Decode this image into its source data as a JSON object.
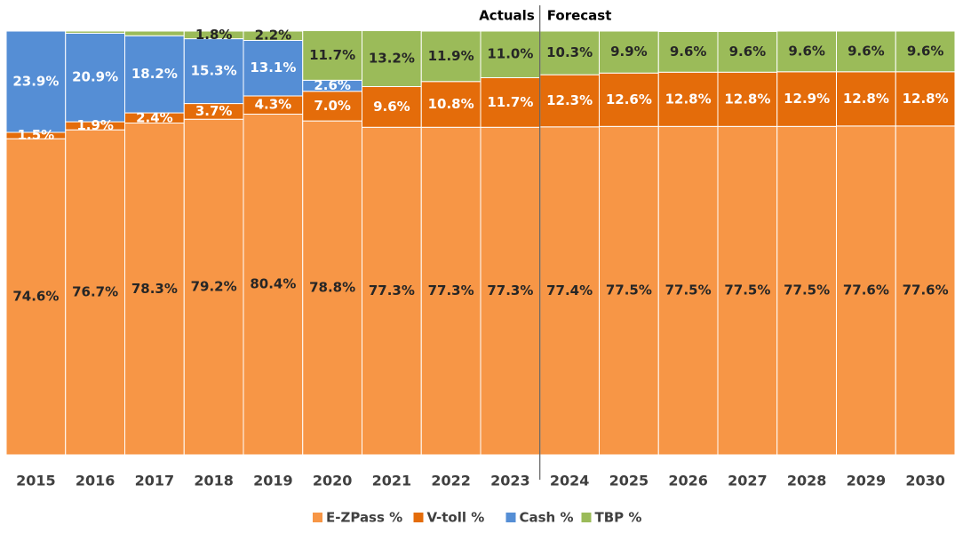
{
  "chart_data": {
    "type": "stacked_bar",
    "categories": [
      "2015",
      "2016",
      "2017",
      "2018",
      "2019",
      "2020",
      "2021",
      "2022",
      "2023",
      "2024",
      "2025",
      "2026",
      "2027",
      "2028",
      "2029",
      "2030"
    ],
    "ylim": [
      0,
      100
    ],
    "annotations": [
      "Actuals",
      "Forecast"
    ],
    "legend": "bottom",
    "series": [
      {
        "name": "E-ZPass %",
        "color": "#f79646",
        "label_color": "#262626",
        "values": [
          74.6,
          76.7,
          78.3,
          79.2,
          80.4,
          78.8,
          77.3,
          77.3,
          77.3,
          77.4,
          77.5,
          77.5,
          77.5,
          77.5,
          77.6,
          77.6
        ],
        "value_labels": [
          "74.6%",
          "76.7%",
          "78.3%",
          "79.2%",
          "80.4%",
          "78.8%",
          "77.3%",
          "77.3%",
          "77.3%",
          "77.4%",
          "77.5%",
          "77.5%",
          "77.5%",
          "77.5%",
          "77.6%",
          "77.6%"
        ]
      },
      {
        "name": "V-toll %",
        "color": "#e46c0a",
        "label_color": "#ffffff",
        "values": [
          1.5,
          1.9,
          2.4,
          3.7,
          4.3,
          7.0,
          9.6,
          10.8,
          11.7,
          12.3,
          12.6,
          12.8,
          12.8,
          12.9,
          12.8,
          12.8
        ],
        "value_labels": [
          "1.5%",
          "1.9%",
          "2.4%",
          "3.7%",
          "4.3%",
          "7.0%",
          "9.6%",
          "10.8%",
          "11.7%",
          "12.3%",
          "12.6%",
          "12.8%",
          "12.8%",
          "12.9%",
          "12.8%",
          "12.8%"
        ]
      },
      {
        "name": "Cash %",
        "color": "#558ed5",
        "label_color": "#ffffff",
        "values": [
          23.9,
          20.9,
          18.2,
          15.3,
          13.1,
          2.6,
          0,
          0,
          0,
          0,
          0,
          0,
          0,
          0,
          0,
          0
        ],
        "value_labels": [
          "23.9%",
          "20.9%",
          "18.2%",
          "15.3%",
          "13.1%",
          "2.6%",
          null,
          null,
          null,
          null,
          null,
          null,
          null,
          null,
          null,
          null
        ]
      },
      {
        "name": "TBP %",
        "color": "#9bbb59",
        "label_color": "#262626",
        "values": [
          0,
          0.5,
          1.1,
          1.8,
          2.2,
          11.7,
          13.2,
          11.9,
          11.0,
          10.3,
          9.9,
          9.6,
          9.6,
          9.6,
          9.6,
          9.6
        ],
        "value_labels": [
          null,
          null,
          null,
          "1.8%",
          "2.2%",
          "11.7%",
          "13.2%",
          "11.9%",
          "11.0%",
          "10.3%",
          "9.9%",
          "9.6%",
          "9.6%",
          "9.6%",
          "9.6%",
          "9.6%"
        ]
      }
    ]
  }
}
